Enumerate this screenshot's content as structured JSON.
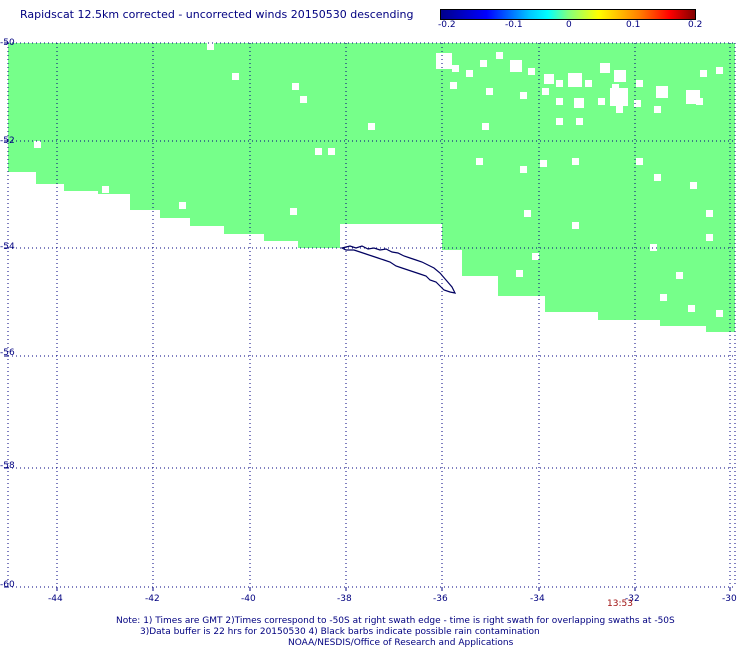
{
  "title": "Rapidscat 12.5km corrected - uncorrected winds 20150530 descending",
  "colorbar": {
    "ticks": [
      "-0.2",
      "-0.1",
      "0",
      "0.1",
      "0.2"
    ]
  },
  "colors": {
    "swath": "#76ff8a",
    "grid": "#000080",
    "coastline": "#000060",
    "time_label": "#a01010"
  },
  "chart_data": {
    "type": "map",
    "lat_ticks": [
      "-50",
      "-52",
      "-54",
      "-56",
      "-58",
      "-60"
    ],
    "lon_ticks": [
      "-44",
      "-42",
      "-40",
      "-38",
      "-36",
      "-34",
      "-32",
      "-30"
    ],
    "lat_range": [
      -60,
      -50
    ],
    "lon_range": [
      -45,
      -30
    ],
    "grid": "dotted",
    "swath_value_approx": 0,
    "swath_time_label": "13:53"
  },
  "notes": {
    "line1": "Note: 1) Times are GMT 2)Times correspond to -50S at right swath edge - time is right swath for overlapping swaths at -50S",
    "line2": "3)Data buffer is 22 hrs for 20150530 4) Black barbs indicate possible rain contamination",
    "line3": "NOAA/NESDIS/Office of Research and Applications"
  }
}
